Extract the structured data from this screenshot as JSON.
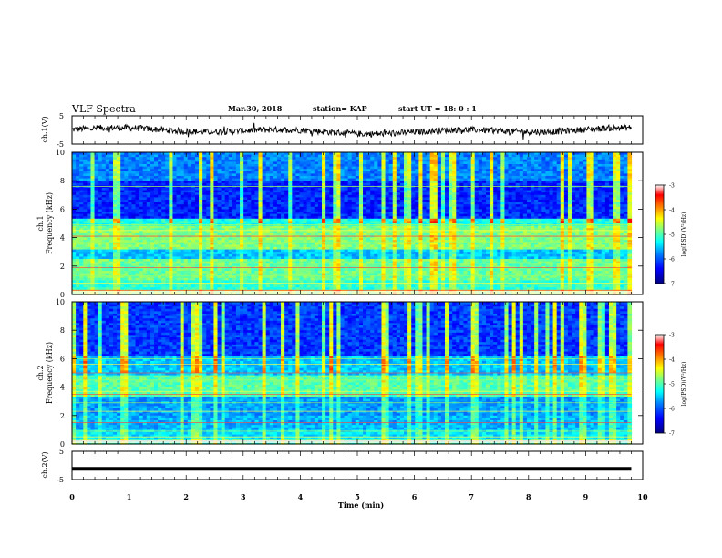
{
  "header": {
    "title": "VLF Spectra",
    "date": "Mar.30, 2018",
    "station": "station= KAP",
    "start_time": "start  UT =   18: 0  : 1"
  },
  "chart_data": [
    {
      "type": "line",
      "panel": "ch1-waveform",
      "ylabel": "ch.1(V)",
      "yticks": [
        "5",
        "-5"
      ],
      "ylim": [
        -5,
        5
      ],
      "xlim": [
        0,
        10
      ],
      "line_color": "#000000"
    },
    {
      "type": "heatmap",
      "panel": "ch1-spectrogram",
      "ylabel_line1": "ch.1",
      "ylabel_line2": "Frequency  (kHz)",
      "yticks": [
        "0",
        "2",
        "4",
        "6",
        "8",
        "10"
      ],
      "ylim": [
        0,
        10
      ],
      "xlim": [
        0,
        9.8
      ],
      "colorbar": {
        "label": "log(PSD)(V²/Hz)",
        "ticks": [
          "-3",
          "-4",
          "-5",
          "-6",
          "-7"
        ],
        "range": [
          -7,
          -3
        ],
        "colors": [
          "#00007f",
          "#0000ff",
          "#0080ff",
          "#00ffff",
          "#80ff80",
          "#ffff00",
          "#ff8000",
          "#ff0000",
          "#ffffff"
        ]
      }
    },
    {
      "type": "heatmap",
      "panel": "ch2-spectrogram",
      "ylabel_line1": "ch.2",
      "ylabel_line2": "Frequency  (kHz)",
      "yticks": [
        "0",
        "2",
        "4",
        "6",
        "8",
        "10"
      ],
      "ylim": [
        0,
        10
      ],
      "xlim": [
        0,
        9.8
      ],
      "colorbar": {
        "label": "log(PSD)(V²/Hz)",
        "ticks": [
          "-3",
          "-4",
          "-5",
          "-6",
          "-7"
        ],
        "range": [
          -7,
          -3
        ],
        "colors": [
          "#00007f",
          "#0000ff",
          "#0080ff",
          "#00ffff",
          "#80ff80",
          "#ffff00",
          "#ff8000",
          "#ff0000",
          "#ffffff"
        ]
      }
    },
    {
      "type": "line",
      "panel": "ch2-waveform",
      "ylabel": "ch.2(V)",
      "yticks": [
        "5",
        "-5"
      ],
      "ylim": [
        -5,
        5
      ],
      "xlim": [
        0,
        10
      ],
      "flat_value": -1.2,
      "line_color": "#000000"
    }
  ],
  "xaxis": {
    "label": "Time  (min)",
    "ticks": [
      "0",
      "1",
      "2",
      "3",
      "4",
      "5",
      "6",
      "7",
      "8",
      "9",
      "10"
    ]
  }
}
